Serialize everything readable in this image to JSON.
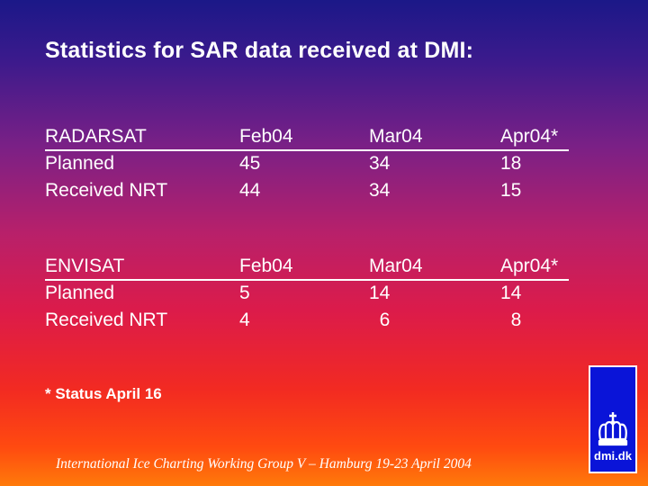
{
  "title": "Statistics for SAR data received at DMI:",
  "tables": [
    {
      "header": [
        "RADARSAT",
        "Feb04",
        "Mar04",
        "Apr04*"
      ],
      "rows": [
        [
          "Planned",
          "45",
          "34",
          "18"
        ],
        [
          "Received NRT",
          "44",
          "34",
          "15"
        ]
      ]
    },
    {
      "header": [
        "ENVISAT",
        "Feb04",
        "Mar04",
        "Apr04*"
      ],
      "rows": [
        [
          "Planned",
          "5",
          "14",
          "14"
        ],
        [
          "Received NRT",
          "4",
          "  6",
          "  8"
        ]
      ]
    }
  ],
  "footnote": "* Status April 16",
  "footer": "International Ice Charting Working Group V – Hamburg 19-23 April 2004",
  "logo": {
    "icon": "crown-icon",
    "text": "dmi.dk",
    "color": "#0a14d8"
  }
}
